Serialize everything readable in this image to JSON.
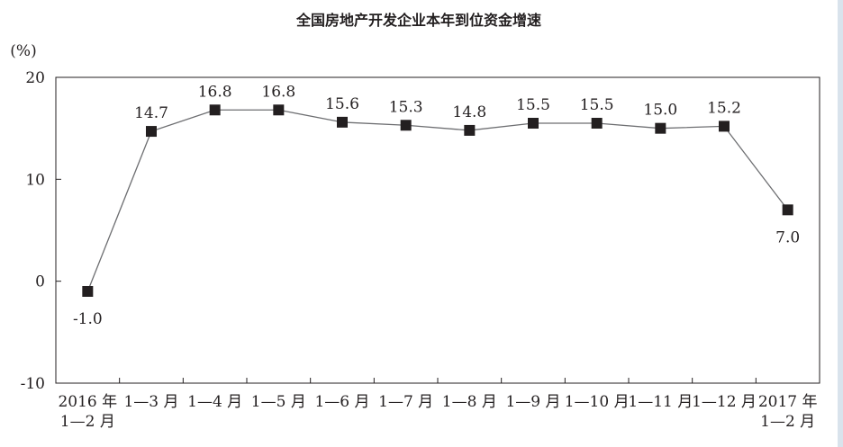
{
  "chart_data": {
    "type": "line",
    "title": "全国房地产开发企业本年到位资金增速",
    "unit": "(%)",
    "categories": [
      [
        "2016 年",
        "1—2 月"
      ],
      [
        "1—3 月"
      ],
      [
        "1—4 月"
      ],
      [
        "1—5 月"
      ],
      [
        "1—6 月"
      ],
      [
        "1—7 月"
      ],
      [
        "1—8 月"
      ],
      [
        "1—9 月"
      ],
      [
        "1—10 月"
      ],
      [
        "1—11 月"
      ],
      [
        "1—12 月"
      ],
      [
        "2017 年",
        "1—2 月"
      ]
    ],
    "values": [
      -1.0,
      14.7,
      16.8,
      16.8,
      15.6,
      15.3,
      14.8,
      15.5,
      15.5,
      15.0,
      15.2,
      7.0
    ],
    "data_labels": [
      "-1.0",
      "14.7",
      "16.8",
      "16.8",
      "15.6",
      "15.3",
      "14.8",
      "15.5",
      "15.5",
      "15.0",
      "15.2",
      "7.0"
    ],
    "ylim": [
      -10,
      20
    ],
    "yticks": [
      -10,
      0,
      10,
      20
    ],
    "line_color": "#6d6e71",
    "marker_color": "#231f20",
    "grid": false
  }
}
